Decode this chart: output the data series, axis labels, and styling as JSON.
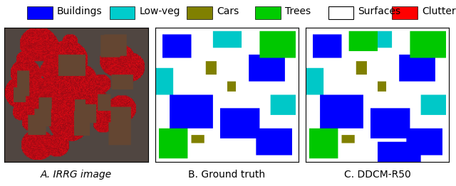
{
  "legend_items": [
    {
      "label": "Buildings",
      "color": "#0000FF"
    },
    {
      "label": "Low-veg",
      "color": "#00CCCC"
    },
    {
      "label": "Cars",
      "color": "#808000"
    },
    {
      "label": "Trees",
      "color": "#00CC00"
    },
    {
      "label": "Surfaces",
      "color": "#FFFFFF"
    },
    {
      "label": "Clutters",
      "color": "#FF0000"
    }
  ],
  "panel_labels": [
    "A. IRRG image",
    "B. Ground truth",
    "C. DDCM-R50"
  ],
  "background_color": "#FFFFFF",
  "border_color": "#000000",
  "legend_fontsize": 10,
  "label_fontsize": 10
}
